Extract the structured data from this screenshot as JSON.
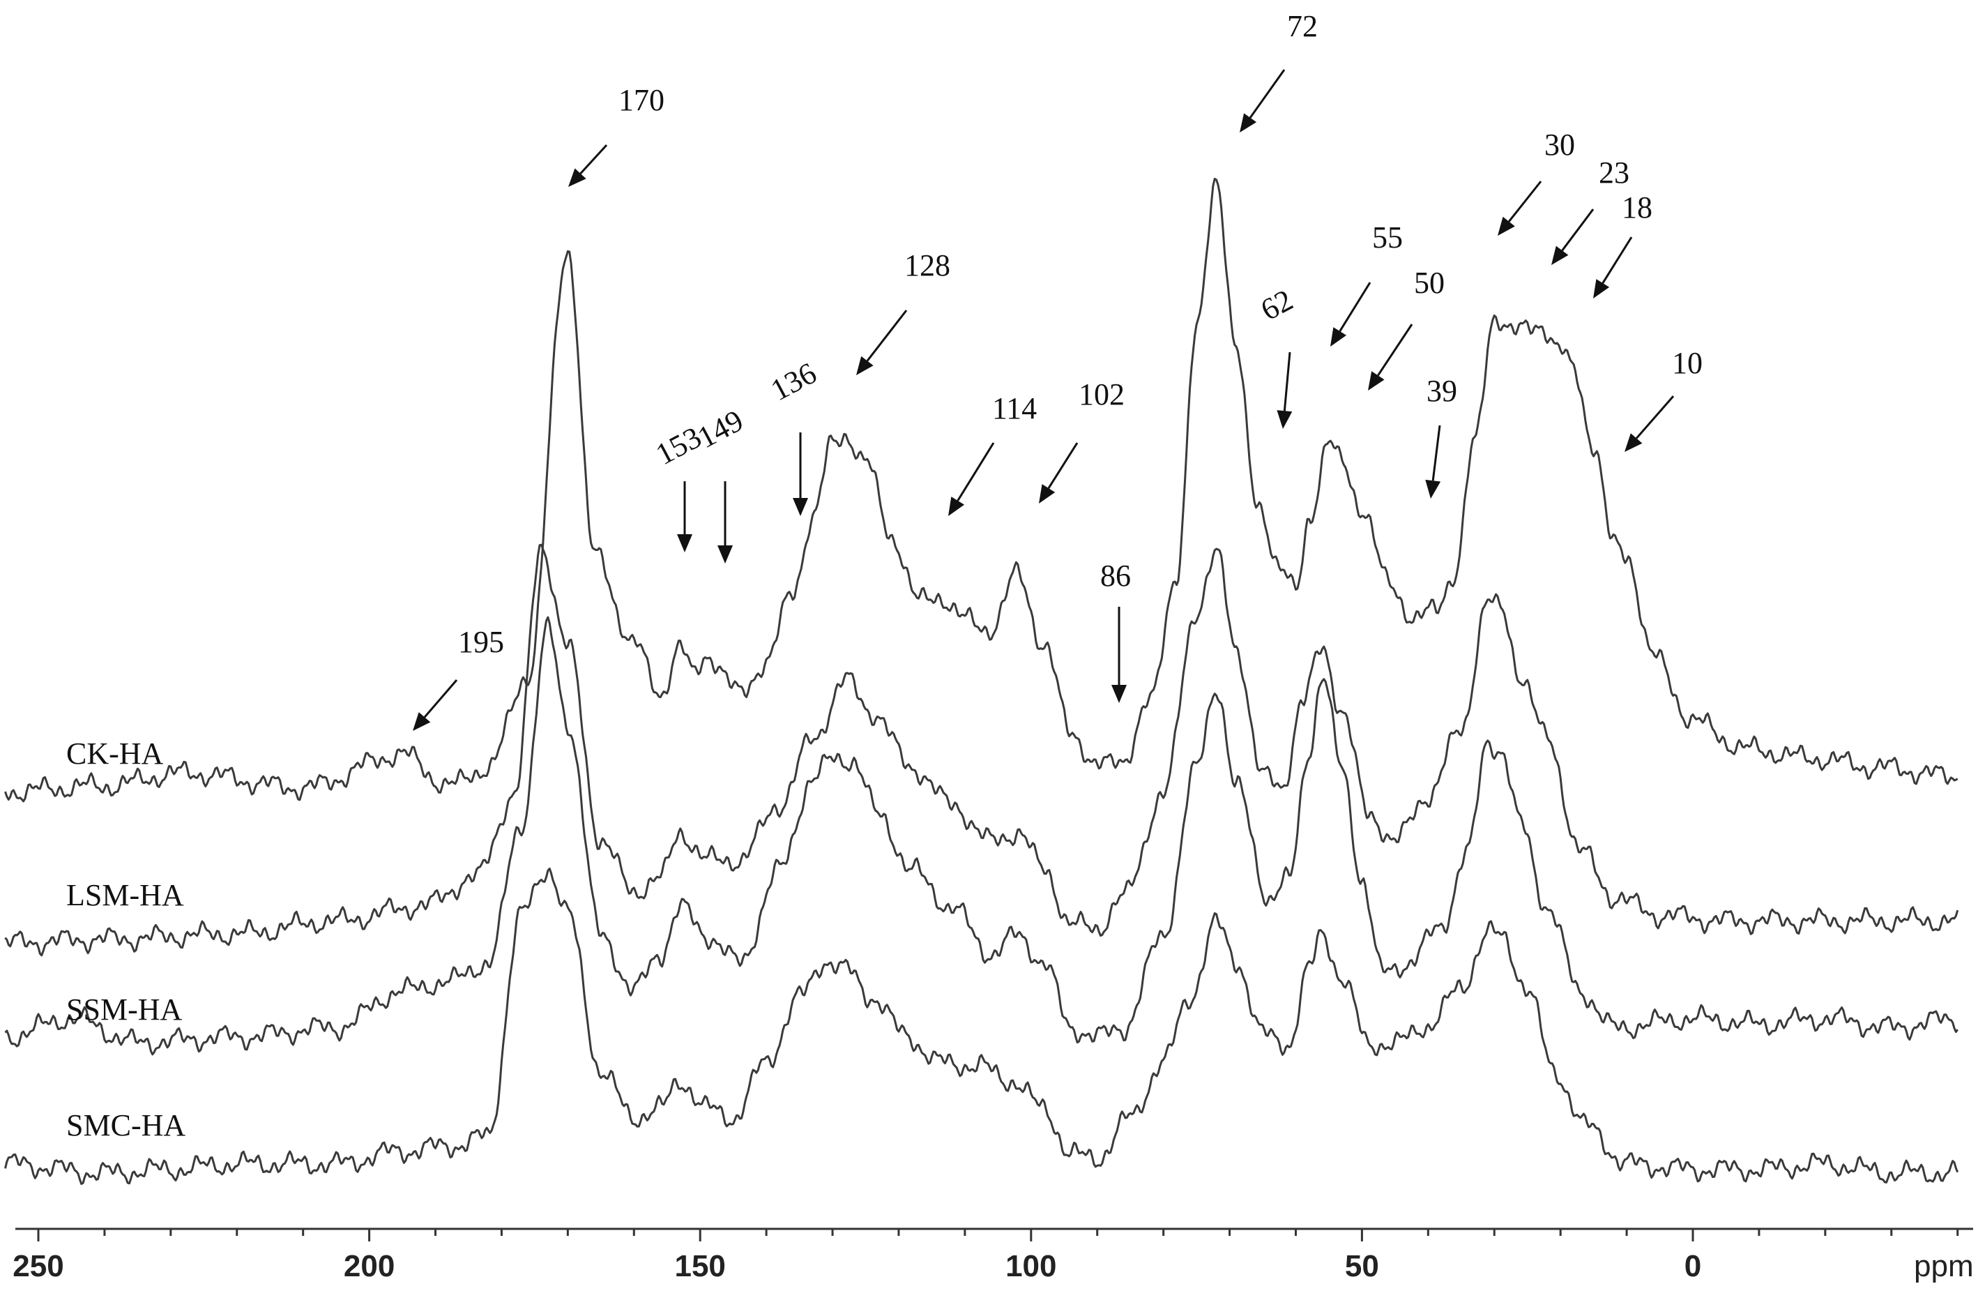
{
  "chart_data": {
    "type": "line",
    "title": "",
    "xlabel": "ppm",
    "ylabel": "",
    "xlim": [
      255,
      -40
    ],
    "x_reversed": true,
    "grid": false,
    "x_ticks": [
      250,
      200,
      150,
      100,
      50,
      0
    ],
    "x_tick_labels": [
      "250",
      "200",
      "150",
      "100",
      "50",
      "0"
    ],
    "series": [
      {
        "name": "CK-HA",
        "peaks": [
          [
            255,
            0.02
          ],
          [
            240,
            0.05
          ],
          [
            228,
            0.12
          ],
          [
            210,
            0.04
          ],
          [
            195,
            0.22
          ],
          [
            188,
            0.05
          ],
          [
            182,
            0.15
          ],
          [
            176,
            0.65
          ],
          [
            170,
            2.95
          ],
          [
            166,
            1.3
          ],
          [
            160,
            0.82
          ],
          [
            156,
            0.55
          ],
          [
            153,
            0.8
          ],
          [
            151,
            0.65
          ],
          [
            149,
            0.76
          ],
          [
            144,
            0.55
          ],
          [
            140,
            0.72
          ],
          [
            136,
            1.1
          ],
          [
            133,
            1.5
          ],
          [
            130,
            1.9
          ],
          [
            128,
            1.95
          ],
          [
            125,
            1.8
          ],
          [
            121,
            1.4
          ],
          [
            117,
            1.05
          ],
          [
            114,
            1.08
          ],
          [
            110,
            0.95
          ],
          [
            106,
            0.9
          ],
          [
            102,
            1.2
          ],
          [
            98,
            0.8
          ],
          [
            94,
            0.35
          ],
          [
            90,
            0.15
          ],
          [
            86,
            0.2
          ],
          [
            82,
            0.5
          ],
          [
            78,
            1.2
          ],
          [
            75,
            2.5
          ],
          [
            72,
            3.35
          ],
          [
            69,
            2.4
          ],
          [
            66,
            1.6
          ],
          [
            62,
            1.2
          ],
          [
            60,
            1.1
          ],
          [
            58,
            1.5
          ],
          [
            55,
            1.9
          ],
          [
            53,
            1.8
          ],
          [
            50,
            1.55
          ],
          [
            46,
            1.15
          ],
          [
            42,
            0.95
          ],
          [
            39,
            1.0
          ],
          [
            36,
            1.2
          ],
          [
            33,
            1.9
          ],
          [
            30,
            2.6
          ],
          [
            27,
            2.5
          ],
          [
            23,
            2.55
          ],
          [
            20,
            2.4
          ],
          [
            18,
            2.3
          ],
          [
            15,
            1.9
          ],
          [
            12,
            1.35
          ],
          [
            10,
            1.3
          ],
          [
            6,
            0.75
          ],
          [
            0,
            0.4
          ],
          [
            -8,
            0.25
          ],
          [
            -18,
            0.2
          ],
          [
            -28,
            0.15
          ],
          [
            -40,
            0.1
          ]
        ]
      },
      {
        "name": "LSM-HA",
        "peaks": [
          [
            255,
            0.0
          ],
          [
            240,
            0.02
          ],
          [
            220,
            0.05
          ],
          [
            205,
            0.12
          ],
          [
            192,
            0.2
          ],
          [
            184,
            0.35
          ],
          [
            178,
            0.8
          ],
          [
            174,
            2.15
          ],
          [
            170,
            1.6
          ],
          [
            165,
            0.55
          ],
          [
            160,
            0.28
          ],
          [
            156,
            0.35
          ],
          [
            153,
            0.6
          ],
          [
            149,
            0.45
          ],
          [
            144,
            0.45
          ],
          [
            138,
            0.75
          ],
          [
            133,
            1.1
          ],
          [
            128,
            1.42
          ],
          [
            124,
            1.25
          ],
          [
            118,
            0.95
          ],
          [
            112,
            0.75
          ],
          [
            106,
            0.55
          ],
          [
            102,
            0.6
          ],
          [
            98,
            0.4
          ],
          [
            94,
            0.1
          ],
          [
            90,
            0.08
          ],
          [
            86,
            0.25
          ],
          [
            80,
            0.8
          ],
          [
            75,
            1.8
          ],
          [
            72,
            2.1
          ],
          [
            69,
            1.6
          ],
          [
            65,
            0.9
          ],
          [
            62,
            0.85
          ],
          [
            59,
            1.3
          ],
          [
            56,
            1.6
          ],
          [
            53,
            1.25
          ],
          [
            49,
            0.7
          ],
          [
            45,
            0.55
          ],
          [
            40,
            0.8
          ],
          [
            35,
            1.15
          ],
          [
            31,
            1.85
          ],
          [
            29,
            1.8
          ],
          [
            26,
            1.45
          ],
          [
            22,
            1.1
          ],
          [
            17,
            0.5
          ],
          [
            12,
            0.25
          ],
          [
            5,
            0.15
          ],
          [
            -5,
            0.12
          ],
          [
            -20,
            0.12
          ],
          [
            -40,
            0.12
          ]
        ]
      },
      {
        "name": "SSM-HA",
        "peaks": [
          [
            255,
            0.05
          ],
          [
            245,
            0.15
          ],
          [
            235,
            0.02
          ],
          [
            220,
            0.05
          ],
          [
            205,
            0.1
          ],
          [
            195,
            0.3
          ],
          [
            188,
            0.35
          ],
          [
            182,
            0.45
          ],
          [
            177,
            1.2
          ],
          [
            173,
            2.25
          ],
          [
            170,
            1.75
          ],
          [
            165,
            0.6
          ],
          [
            160,
            0.3
          ],
          [
            156,
            0.5
          ],
          [
            153,
            0.75
          ],
          [
            149,
            0.6
          ],
          [
            144,
            0.45
          ],
          [
            138,
            0.95
          ],
          [
            133,
            1.45
          ],
          [
            130,
            1.55
          ],
          [
            127,
            1.55
          ],
          [
            123,
            1.25
          ],
          [
            118,
            0.95
          ],
          [
            112,
            0.75
          ],
          [
            106,
            0.5
          ],
          [
            102,
            0.6
          ],
          [
            98,
            0.45
          ],
          [
            94,
            0.1
          ],
          [
            90,
            0.05
          ],
          [
            86,
            0.1
          ],
          [
            80,
            0.6
          ],
          [
            75,
            1.5
          ],
          [
            72,
            1.95
          ],
          [
            69,
            1.4
          ],
          [
            64,
            0.8
          ],
          [
            61,
            0.9
          ],
          [
            58,
            1.6
          ],
          [
            56,
            2.0
          ],
          [
            53,
            1.5
          ],
          [
            50,
            0.9
          ],
          [
            47,
            0.4
          ],
          [
            43,
            0.45
          ],
          [
            38,
            0.65
          ],
          [
            34,
            1.05
          ],
          [
            31,
            1.65
          ],
          [
            29,
            1.6
          ],
          [
            26,
            1.2
          ],
          [
            22,
            0.75
          ],
          [
            17,
            0.3
          ],
          [
            12,
            0.1
          ],
          [
            0,
            0.15
          ],
          [
            -10,
            0.12
          ],
          [
            -20,
            0.15
          ],
          [
            -30,
            0.1
          ],
          [
            -40,
            0.15
          ]
        ]
      },
      {
        "name": "SMC-HA",
        "peaks": [
          [
            255,
            0.05
          ],
          [
            240,
            0.0
          ],
          [
            230,
            0.02
          ],
          [
            220,
            0.05
          ],
          [
            205,
            0.05
          ],
          [
            195,
            0.12
          ],
          [
            187,
            0.15
          ],
          [
            182,
            0.2
          ],
          [
            177,
            1.4
          ],
          [
            173,
            1.65
          ],
          [
            170,
            1.4
          ],
          [
            165,
            0.55
          ],
          [
            160,
            0.3
          ],
          [
            156,
            0.35
          ],
          [
            153,
            0.5
          ],
          [
            149,
            0.35
          ],
          [
            145,
            0.3
          ],
          [
            140,
            0.6
          ],
          [
            135,
            0.95
          ],
          [
            131,
            1.15
          ],
          [
            128,
            1.1
          ],
          [
            124,
            0.95
          ],
          [
            119,
            0.75
          ],
          [
            114,
            0.6
          ],
          [
            108,
            0.58
          ],
          [
            103,
            0.5
          ],
          [
            98,
            0.35
          ],
          [
            94,
            0.1
          ],
          [
            90,
            0.08
          ],
          [
            85,
            0.3
          ],
          [
            80,
            0.6
          ],
          [
            76,
            0.95
          ],
          [
            72,
            1.35
          ],
          [
            69,
            1.15
          ],
          [
            65,
            0.75
          ],
          [
            61,
            0.7
          ],
          [
            58,
            1.1
          ],
          [
            56,
            1.3
          ],
          [
            53,
            1.05
          ],
          [
            49,
            0.7
          ],
          [
            45,
            0.7
          ],
          [
            40,
            0.8
          ],
          [
            35,
            1.0
          ],
          [
            31,
            1.3
          ],
          [
            29,
            1.28
          ],
          [
            25,
            1.0
          ],
          [
            21,
            0.55
          ],
          [
            16,
            0.25
          ],
          [
            10,
            0.05
          ],
          [
            0,
            0.02
          ],
          [
            -10,
            0.02
          ],
          [
            -20,
            0.05
          ],
          [
            -30,
            0.0
          ],
          [
            -40,
            0.0
          ]
        ]
      }
    ],
    "annotations": [
      {
        "label": "170",
        "x": 170
      },
      {
        "label": "195",
        "x": 195
      },
      {
        "label": "153",
        "x": 153
      },
      {
        "label": "149",
        "x": 149
      },
      {
        "label": "136",
        "x": 136
      },
      {
        "label": "128",
        "x": 128
      },
      {
        "label": "114",
        "x": 114
      },
      {
        "label": "102",
        "x": 102
      },
      {
        "label": "86",
        "x": 86
      },
      {
        "label": "72",
        "x": 72
      },
      {
        "label": "62",
        "x": 62
      },
      {
        "label": "55",
        "x": 55
      },
      {
        "label": "50",
        "x": 50
      },
      {
        "label": "39",
        "x": 39
      },
      {
        "label": "30",
        "x": 30
      },
      {
        "label": "23",
        "x": 23
      },
      {
        "label": "18",
        "x": 18
      },
      {
        "label": "10",
        "x": 10
      }
    ]
  }
}
